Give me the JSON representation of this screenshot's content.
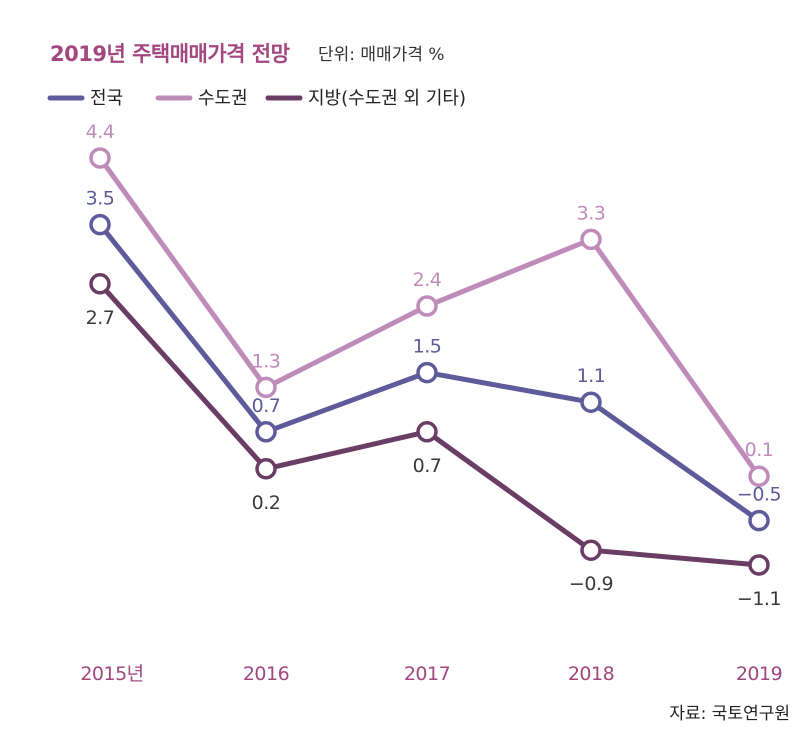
{
  "chart_data": {
    "type": "line",
    "title": "2019년 주택매매가격 전망",
    "unit_label": "단위: 매매가격 %",
    "source": "자료: 국토연구원",
    "categories": [
      "2015년",
      "2016",
      "2017",
      "2018",
      "2019"
    ],
    "ylim": [
      -2,
      5
    ],
    "grid": false,
    "legend_position": "top-left",
    "series": [
      {
        "name": "전국",
        "color": "#5e5b9a",
        "values": [
          3.5,
          0.7,
          1.5,
          1.1,
          -0.5
        ],
        "labels": [
          "3.5",
          "0.7",
          "1.5",
          "1.1",
          "−0.5"
        ]
      },
      {
        "name": "수도권",
        "color": "#bf8cba",
        "values": [
          4.4,
          1.3,
          2.4,
          3.3,
          0.1
        ],
        "labels": [
          "4.4",
          "1.3",
          "2.4",
          "3.3",
          "0.1"
        ]
      },
      {
        "name": "지방(수도권 외 기타)",
        "color": "#6a3d64",
        "values": [
          2.7,
          0.2,
          0.7,
          -0.9,
          -1.1
        ],
        "labels": [
          "2.7",
          "0.2",
          "0.7",
          "−0.9",
          "−1.1"
        ]
      }
    ],
    "title_color": "#a2477f",
    "tick_color": "#a2477f"
  }
}
